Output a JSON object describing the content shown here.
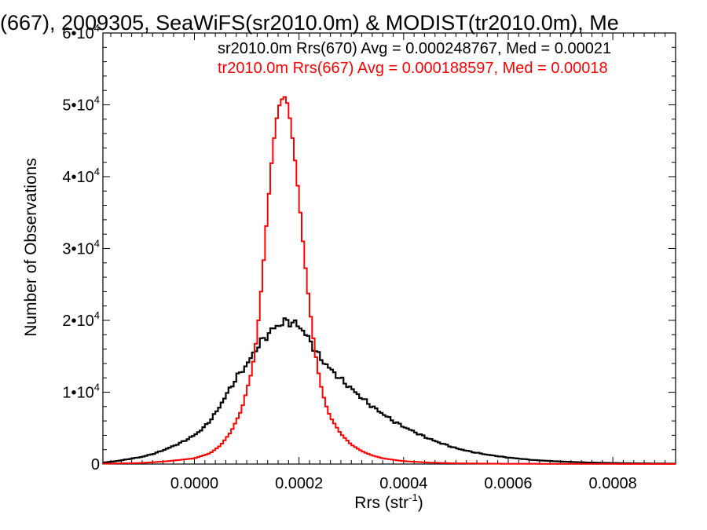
{
  "chart_data": {
    "type": "line",
    "title": "(667), 2009305, SeaWiFS(sr2010.0m) & MODIST(tr2010.0m), Me",
    "xlabel": "Rrs (str",
    "xlabel_sup": "-1",
    "xlabel_end": ")",
    "ylabel": "Number of Observations",
    "xlim": [
      -0.000175,
      0.00092
    ],
    "ylim": [
      0,
      60000
    ],
    "x_ticks": [
      {
        "value": 0.0,
        "label": "0.0000"
      },
      {
        "value": 0.0002,
        "label": "0.0002"
      },
      {
        "value": 0.0004,
        "label": "0.0004"
      },
      {
        "value": 0.0006,
        "label": "0.0006"
      },
      {
        "value": 0.0008,
        "label": "0.0008"
      }
    ],
    "y_ticks": [
      {
        "value": 0,
        "label": "0",
        "exp": ""
      },
      {
        "value": 10000,
        "label": "1•10",
        "exp": "4"
      },
      {
        "value": 20000,
        "label": "2•10",
        "exp": "4"
      },
      {
        "value": 30000,
        "label": "3•10",
        "exp": "4"
      },
      {
        "value": 40000,
        "label": "4•10",
        "exp": "4"
      },
      {
        "value": 50000,
        "label": "5•10",
        "exp": "4"
      },
      {
        "value": 60000,
        "label": "6•10",
        "exp": "4"
      }
    ],
    "legend": [
      {
        "text": "sr2010.0m Rrs(670) Avg = 0.000248767, Med = 0.00021",
        "color": "#000000"
      },
      {
        "text": "tr2010.0m Rrs(667) Avg = 0.000188597, Med = 0.00018",
        "color": "#ff0000"
      }
    ],
    "legend_placement": "top-right",
    "series": [
      {
        "color": "#000000",
        "x": [
          -0.000175,
          -0.00015,
          -0.000125,
          -0.0001,
          -7.5e-05,
          -5e-05,
          -2.5e-05,
          0.0,
          2e-05,
          4e-05,
          6e-05,
          8e-05,
          0.0001,
          0.00011,
          0.00012,
          0.00013,
          0.00014,
          0.00015,
          0.00016,
          0.00017,
          0.00018,
          0.00019,
          0.0002,
          0.00021,
          0.00022,
          0.00023,
          0.00024,
          0.00026,
          0.00028,
          0.0003,
          0.00032,
          0.00034,
          0.00036,
          0.00038,
          0.0004,
          0.00042,
          0.00044,
          0.00046,
          0.00048,
          0.0005,
          0.00053,
          0.00056,
          0.0006,
          0.00065,
          0.0007,
          0.00075,
          0.0008,
          0.00085,
          0.00092
        ],
        "y": [
          200,
          400,
          700,
          1000,
          1500,
          2200,
          3000,
          4000,
          5200,
          7000,
          9500,
          12000,
          13800,
          15000,
          16300,
          17200,
          18000,
          18800,
          19300,
          19700,
          19900,
          19600,
          19200,
          18400,
          17200,
          16000,
          14800,
          13200,
          11800,
          10500,
          9200,
          8000,
          7000,
          6000,
          5200,
          4500,
          3800,
          3200,
          2700,
          2200,
          1700,
          1300,
          900,
          550,
          350,
          220,
          140,
          90,
          50
        ]
      },
      {
        "color": "#ff0000",
        "x": [
          -0.000175,
          -0.0001,
          -5e-05,
          0.0,
          3e-05,
          5e-05,
          7e-05,
          9e-05,
          0.00011,
          0.00012,
          0.00013,
          0.00014,
          0.00015,
          0.00016,
          0.00017,
          0.000175,
          0.00018,
          0.00019,
          0.0002,
          0.00021,
          0.00022,
          0.00023,
          0.00024,
          0.00025,
          0.00026,
          0.00028,
          0.0003,
          0.00032,
          0.00034,
          0.00036,
          0.0004,
          0.00045,
          0.0005,
          0.0006,
          0.00092
        ],
        "y": [
          50,
          150,
          400,
          800,
          1500,
          2600,
          4500,
          7500,
          13000,
          18000,
          26000,
          35500,
          44000,
          49500,
          51200,
          51000,
          49500,
          44000,
          37000,
          29000,
          22000,
          16000,
          11500,
          8500,
          6500,
          4200,
          2700,
          1800,
          1200,
          800,
          400,
          200,
          100,
          40,
          10
        ]
      }
    ]
  }
}
